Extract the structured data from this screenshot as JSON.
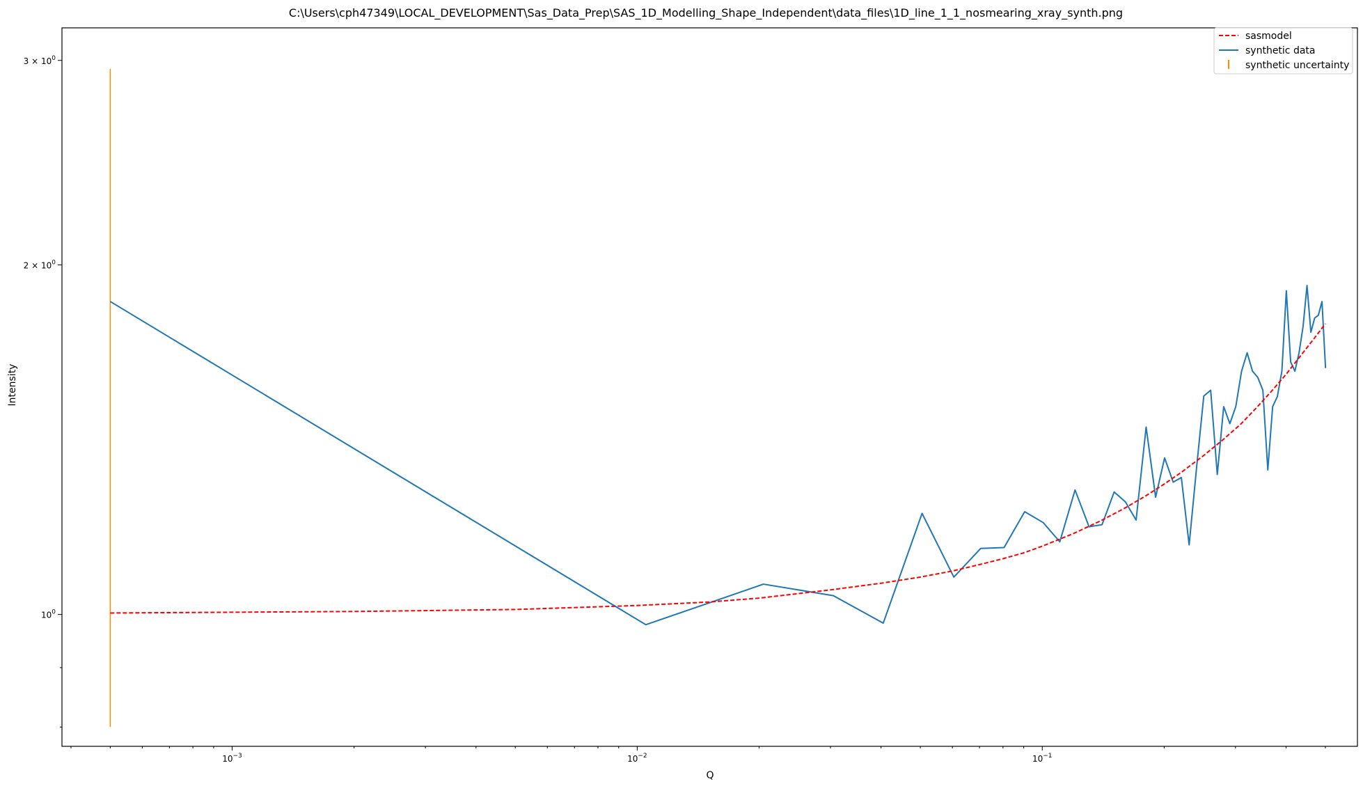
{
  "chart_data": {
    "type": "line",
    "title": "C:\\Users\\cph47349\\LOCAL_DEVELOPMENT\\Sas_Data_Prep\\SAS_1D_Modelling_Shape_Independent\\data_files\\1D_line_1_1_nosmearing_xray_synth.png",
    "xlabel": "Q",
    "ylabel": "Intensity",
    "xscale": "log",
    "yscale": "log",
    "xlim": [
      0.00038,
      0.6
    ],
    "ylim": [
      0.77,
      3.2
    ],
    "grid": false,
    "legend_position": "top-right",
    "x_ticks": [
      {
        "value": 0.001,
        "base": "10",
        "exp": "−3"
      },
      {
        "value": 0.01,
        "base": "10",
        "exp": "−2"
      },
      {
        "value": 0.1,
        "base": "10",
        "exp": "−1"
      }
    ],
    "y_ticks": [
      {
        "value": 1,
        "label": "10",
        "exp": "0"
      },
      {
        "value": 2,
        "label": "2 × 10",
        "exp": "0"
      },
      {
        "value": 3,
        "label": "3 × 10",
        "exp": "0"
      }
    ],
    "series": [
      {
        "name": "sasmodel",
        "style": "dashed",
        "color": "#ff0000",
        "x": [
          0.0005,
          0.002,
          0.005,
          0.01,
          0.015,
          0.02,
          0.03,
          0.04,
          0.05,
          0.06,
          0.07,
          0.08,
          0.09,
          0.1,
          0.12,
          0.14,
          0.16,
          0.18,
          0.2,
          0.22,
          0.25,
          0.28,
          0.31,
          0.34,
          0.37,
          0.4,
          0.44,
          0.47,
          0.5
        ],
        "values": [
          1.003,
          1.006,
          1.01,
          1.018,
          1.025,
          1.033,
          1.05,
          1.064,
          1.077,
          1.09,
          1.104,
          1.117,
          1.13,
          1.145,
          1.175,
          1.205,
          1.235,
          1.265,
          1.295,
          1.325,
          1.37,
          1.415,
          1.46,
          1.51,
          1.56,
          1.61,
          1.68,
          1.73,
          1.78
        ]
      },
      {
        "name": "synthetic data",
        "style": "solid",
        "color": "#1f77b4",
        "x": [
          0.0005,
          0.0105,
          0.0205,
          0.0305,
          0.0405,
          0.0505,
          0.0605,
          0.0705,
          0.0805,
          0.0905,
          0.1005,
          0.1105,
          0.1205,
          0.1305,
          0.1405,
          0.1505,
          0.1605,
          0.1705,
          0.1805,
          0.1905,
          0.2005,
          0.2105,
          0.2205,
          0.2305,
          0.2405,
          0.2505,
          0.2605,
          0.2705,
          0.2805,
          0.2905,
          0.3005,
          0.3105,
          0.3205,
          0.3305,
          0.3405,
          0.3505,
          0.3605,
          0.3705,
          0.3805,
          0.3905,
          0.4005,
          0.4105,
          0.4205,
          0.4305,
          0.4405,
          0.4505,
          0.4605,
          0.4705,
          0.4805,
          0.4905,
          0.5005
        ],
        "values": [
          1.86,
          0.98,
          1.062,
          1.038,
          0.983,
          1.222,
          1.077,
          1.14,
          1.142,
          1.226,
          1.2,
          1.155,
          1.28,
          1.19,
          1.195,
          1.275,
          1.25,
          1.206,
          1.45,
          1.262,
          1.364,
          1.3,
          1.312,
          1.148,
          1.339,
          1.542,
          1.56,
          1.32,
          1.51,
          1.46,
          1.51,
          1.62,
          1.68,
          1.62,
          1.6,
          1.56,
          1.332,
          1.51,
          1.54,
          1.62,
          1.9,
          1.65,
          1.62,
          1.68,
          1.77,
          1.92,
          1.75,
          1.8,
          1.81,
          1.86,
          1.63
        ]
      }
    ],
    "errorbars": [
      {
        "name": "synthetic uncertainty",
        "color": "#ff8c00",
        "x": 0.0005,
        "y": 1.86,
        "low": 0.8,
        "high": 2.95
      }
    ]
  }
}
